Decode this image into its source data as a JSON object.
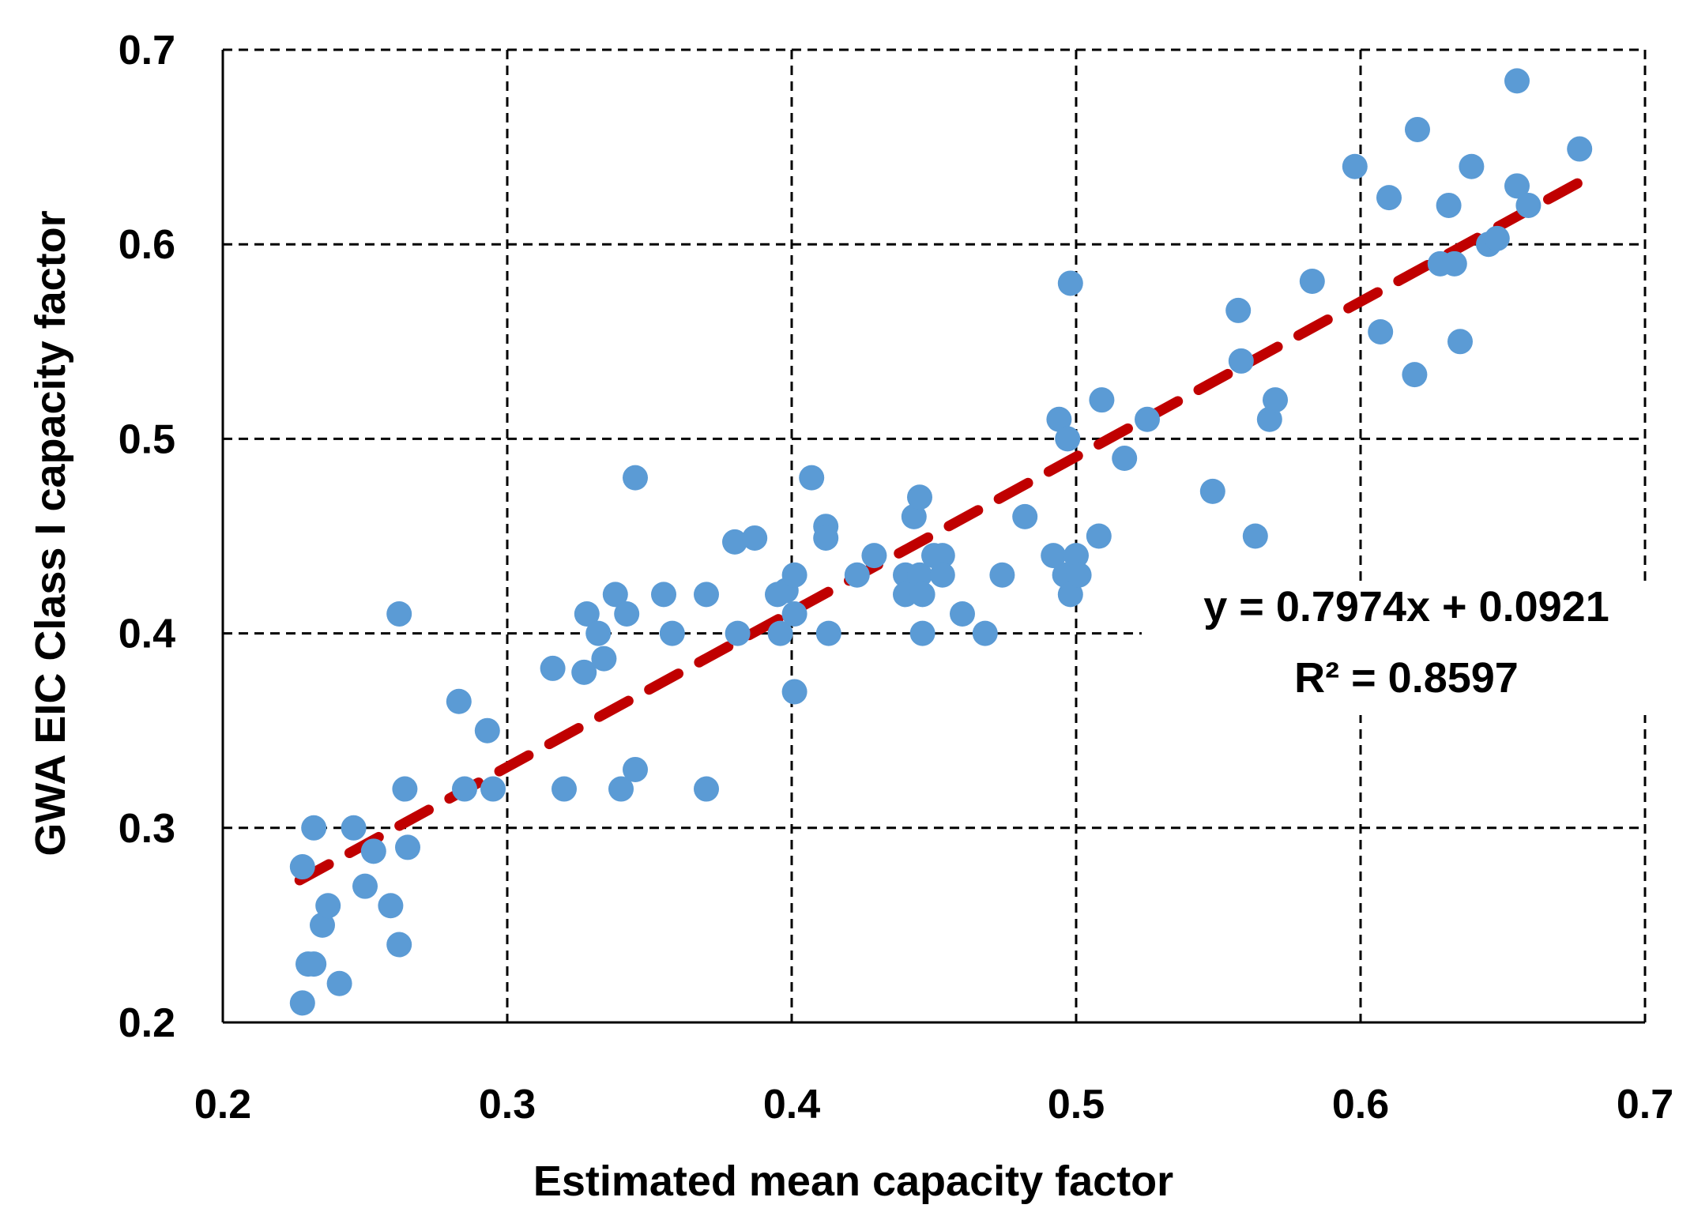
{
  "chart_data": {
    "type": "scatter",
    "xlabel": "Estimated mean capacity factor",
    "ylabel": "GWA EIC Class I capacity factor",
    "xlim": [
      0.2,
      0.7
    ],
    "ylim": [
      0.2,
      0.7
    ],
    "xticks": [
      "0.2",
      "0.3",
      "0.4",
      "0.5",
      "0.6",
      "0.7"
    ],
    "yticks": [
      "0.2",
      "0.3",
      "0.4",
      "0.5",
      "0.6",
      "0.7"
    ],
    "grid": true,
    "grid_style": "dashed",
    "colors": {
      "points": "#5b9bd5",
      "trendline": "#c00000",
      "grid": "#000000"
    },
    "series": [
      {
        "points": [
          [
            0.228,
            0.21
          ],
          [
            0.23,
            0.23
          ],
          [
            0.232,
            0.23
          ],
          [
            0.241,
            0.22
          ],
          [
            0.235,
            0.25
          ],
          [
            0.237,
            0.26
          ],
          [
            0.228,
            0.28
          ],
          [
            0.232,
            0.3
          ],
          [
            0.246,
            0.3
          ],
          [
            0.253,
            0.288
          ],
          [
            0.25,
            0.27
          ],
          [
            0.259,
            0.26
          ],
          [
            0.262,
            0.24
          ],
          [
            0.265,
            0.29
          ],
          [
            0.264,
            0.32
          ],
          [
            0.262,
            0.41
          ],
          [
            0.283,
            0.365
          ],
          [
            0.285,
            0.32
          ],
          [
            0.293,
            0.35
          ],
          [
            0.295,
            0.32
          ],
          [
            0.316,
            0.382
          ],
          [
            0.32,
            0.32
          ],
          [
            0.327,
            0.38
          ],
          [
            0.328,
            0.41
          ],
          [
            0.332,
            0.4
          ],
          [
            0.334,
            0.387
          ],
          [
            0.338,
            0.42
          ],
          [
            0.34,
            0.32
          ],
          [
            0.342,
            0.41
          ],
          [
            0.345,
            0.33
          ],
          [
            0.345,
            0.48
          ],
          [
            0.355,
            0.42
          ],
          [
            0.358,
            0.4
          ],
          [
            0.37,
            0.42
          ],
          [
            0.37,
            0.32
          ],
          [
            0.38,
            0.447
          ],
          [
            0.381,
            0.4
          ],
          [
            0.387,
            0.449
          ],
          [
            0.395,
            0.42
          ],
          [
            0.396,
            0.4
          ],
          [
            0.398,
            0.422
          ],
          [
            0.401,
            0.41
          ],
          [
            0.401,
            0.43
          ],
          [
            0.401,
            0.37
          ],
          [
            0.407,
            0.48
          ],
          [
            0.412,
            0.455
          ],
          [
            0.412,
            0.449
          ],
          [
            0.413,
            0.4
          ],
          [
            0.423,
            0.43
          ],
          [
            0.429,
            0.44
          ],
          [
            0.44,
            0.43
          ],
          [
            0.44,
            0.42
          ],
          [
            0.443,
            0.46
          ],
          [
            0.445,
            0.47
          ],
          [
            0.445,
            0.43
          ],
          [
            0.446,
            0.42
          ],
          [
            0.446,
            0.4
          ],
          [
            0.45,
            0.44
          ],
          [
            0.453,
            0.44
          ],
          [
            0.453,
            0.43
          ],
          [
            0.46,
            0.41
          ],
          [
            0.468,
            0.4
          ],
          [
            0.474,
            0.43
          ],
          [
            0.482,
            0.46
          ],
          [
            0.492,
            0.44
          ],
          [
            0.494,
            0.51
          ],
          [
            0.496,
            0.43
          ],
          [
            0.497,
            0.5
          ],
          [
            0.498,
            0.42
          ],
          [
            0.498,
            0.58
          ],
          [
            0.5,
            0.44
          ],
          [
            0.501,
            0.43
          ],
          [
            0.508,
            0.45
          ],
          [
            0.509,
            0.52
          ],
          [
            0.517,
            0.49
          ],
          [
            0.525,
            0.51
          ],
          [
            0.548,
            0.473
          ],
          [
            0.557,
            0.566
          ],
          [
            0.558,
            0.54
          ],
          [
            0.563,
            0.45
          ],
          [
            0.568,
            0.51
          ],
          [
            0.57,
            0.52
          ],
          [
            0.583,
            0.581
          ],
          [
            0.598,
            0.64
          ],
          [
            0.607,
            0.555
          ],
          [
            0.61,
            0.624
          ],
          [
            0.619,
            0.533
          ],
          [
            0.62,
            0.659
          ],
          [
            0.628,
            0.59
          ],
          [
            0.631,
            0.62
          ],
          [
            0.633,
            0.59
          ],
          [
            0.635,
            0.55
          ],
          [
            0.639,
            0.64
          ],
          [
            0.645,
            0.6
          ],
          [
            0.648,
            0.603
          ],
          [
            0.655,
            0.684
          ],
          [
            0.655,
            0.63
          ],
          [
            0.659,
            0.62
          ],
          [
            0.677,
            0.649
          ]
        ]
      }
    ],
    "trendline": {
      "type": "linear",
      "slope": 0.7974,
      "intercept": 0.0921,
      "x_range": [
        0.227,
        0.677
      ],
      "style": "dashed"
    },
    "annotations": [
      "y = 0.7974x + 0.0921",
      "R² = 0.8597"
    ]
  }
}
